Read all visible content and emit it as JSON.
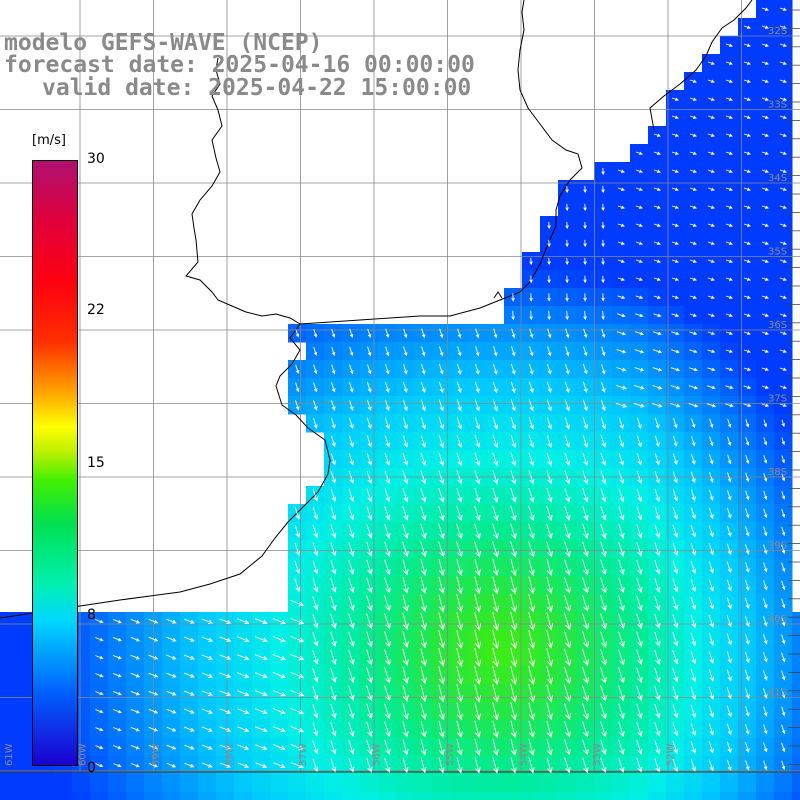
{
  "title": {
    "line1": "modelo GEFS-WAVE (NCEP)",
    "line2": "forecast date: 2025-04-16 00:00:00",
    "line3": "valid date: 2025-04-22 15:00:00"
  },
  "colorbar": {
    "unit": "[m/s]",
    "ticks": [
      "30",
      "22",
      "15",
      "8",
      "0"
    ],
    "values": [
      30,
      22,
      15,
      8,
      0
    ]
  },
  "map": {
    "lat_labels": [
      "32S",
      "33S",
      "34S",
      "35S",
      "36S",
      "37S",
      "38S",
      "39S",
      "40S",
      "41S"
    ],
    "lon_labels": [
      "61W",
      "60W",
      "59W",
      "58W",
      "57W",
      "56W",
      "55W",
      "54W",
      "53W",
      "52W"
    ],
    "colors": {
      "land": "#ffffff",
      "grid": "#888888",
      "coast": "#000000",
      "arrow": "#ffffff"
    }
  }
}
